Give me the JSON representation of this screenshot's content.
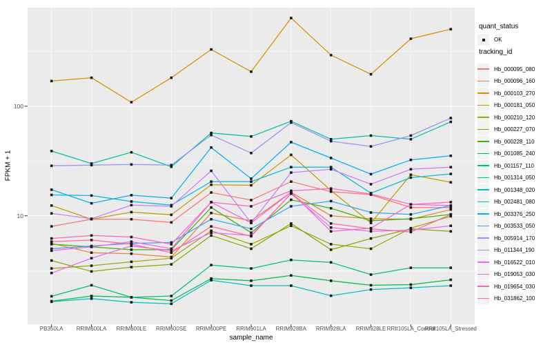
{
  "figure_type": "ggplot-line-chart",
  "colors": {
    "panel_background": "#EBEBEB",
    "gridline": "#FFFFFF",
    "tick_text": "#4D4D4D",
    "axis_text": "#000000",
    "point": "#1B1B1B",
    "legend_key_background": "#F2F2F2"
  },
  "y_axis": {
    "title": "FPKM + 1",
    "scale": "log10",
    "tick_labels": [
      "100",
      "10"
    ],
    "tick_values": [
      100,
      10
    ]
  },
  "x_axis": {
    "title": "sample_name"
  },
  "legend": {
    "quant_status": {
      "title": "quant_status",
      "items": [
        {
          "label": "OK",
          "symbol": "point"
        }
      ]
    },
    "tracking_id": {
      "title": "tracking_id"
    }
  },
  "chart_data": {
    "type": "line",
    "title": "",
    "xlabel": "sample_name",
    "ylabel": "FPKM + 1",
    "y_scale": "log10",
    "ylim": [
      1,
      800
    ],
    "grid": true,
    "legend_position": "right",
    "point_color": "#1B1B1B",
    "categories": [
      "PB350LA",
      "RRIM600LA",
      "RRIM600LE",
      "RRIM600SE",
      "RRIM600PE",
      "RRIM901LA",
      "RRIM928BA",
      "RRIM928LA",
      "RRIM928LE",
      "RRII105LA_Control",
      "RRII105LA_Stressed"
    ],
    "series": [
      {
        "name": "Hb_000095_080",
        "color": "#F8766D",
        "quant_status": "OK",
        "values": [
          8.0,
          9.3,
          9.3,
          8.7,
          16.3,
          13.9,
          20.5,
          16.6,
          15.6,
          11.9,
          11.9
        ]
      },
      {
        "name": "Hb_000096_160",
        "color": "#EA8331",
        "quant_status": "OK",
        "values": [
          5.6,
          4.6,
          4.5,
          4.2,
          10.6,
          9.0,
          16.4,
          10.0,
          9.4,
          9.3,
          11.4
        ]
      },
      {
        "name": "Hb_000103_270",
        "color": "#D89000",
        "quant_status": "OK",
        "values": [
          170,
          182,
          109,
          182,
          330,
          207,
          640,
          293,
          196,
          414,
          506
        ]
      },
      {
        "name": "Hb_000181_050",
        "color": "#C09B00",
        "quant_status": "OK",
        "values": [
          12.4,
          9.3,
          10.8,
          10.2,
          19.2,
          19.0,
          36.0,
          17.0,
          8.6,
          23.7,
          20.2
        ]
      },
      {
        "name": "Hb_000210_120",
        "color": "#A3A500",
        "quant_status": "OK",
        "values": [
          3.3,
          3.5,
          3.8,
          4.1,
          7.3,
          5.5,
          8.1,
          5.5,
          5.0,
          7.7,
          9.9
        ]
      },
      {
        "name": "Hb_000227_070",
        "color": "#7CAE00",
        "quant_status": "OK",
        "values": [
          3.9,
          3.1,
          3.4,
          3.6,
          6.6,
          5.0,
          8.5,
          4.9,
          6.2,
          7.6,
          7.2
        ]
      },
      {
        "name": "Hb_000228_110",
        "color": "#39B600",
        "quant_status": "OK",
        "values": [
          5.5,
          5.2,
          4.9,
          4.9,
          11.9,
          7.0,
          14.0,
          11.7,
          9.0,
          9.4,
          10.3
        ]
      },
      {
        "name": "Hb_001085_240",
        "color": "#00BB4E",
        "quant_status": "OK",
        "values": [
          1.66,
          1.85,
          1.8,
          1.68,
          2.67,
          2.55,
          2.85,
          2.55,
          2.32,
          2.35,
          2.6
        ]
      },
      {
        "name": "Hb_001157_110",
        "color": "#00BF7D",
        "quant_status": "OK",
        "values": [
          1.84,
          2.32,
          1.8,
          1.85,
          3.55,
          3.3,
          3.95,
          3.75,
          2.9,
          3.35,
          3.35
        ]
      },
      {
        "name": "Hb_001314_050",
        "color": "#00C1A3",
        "quant_status": "OK",
        "values": [
          39,
          30,
          38,
          28,
          57,
          53,
          73,
          50,
          54,
          50,
          72
        ]
      },
      {
        "name": "Hb_001348_020",
        "color": "#00BFC4",
        "quant_status": "OK",
        "values": [
          1.64,
          1.75,
          1.62,
          1.57,
          2.58,
          2.3,
          2.3,
          1.86,
          2.12,
          2.2,
          2.3
        ]
      },
      {
        "name": "Hb_002481_080",
        "color": "#00BAE0",
        "quant_status": "OK",
        "values": [
          15.5,
          15.3,
          13.5,
          12.5,
          20.5,
          20.5,
          27.8,
          27.8,
          16.1,
          22.3,
          24.1
        ]
      },
      {
        "name": "Hb_003376_250",
        "color": "#00B0F6",
        "quant_status": "OK",
        "values": [
          17.3,
          13.0,
          15.4,
          14.5,
          42.0,
          21.8,
          47.0,
          33.7,
          24.0,
          32.4,
          35.3
        ]
      },
      {
        "name": "Hb_003533_050",
        "color": "#35A2FF",
        "quant_status": "OK",
        "values": [
          5.0,
          5.3,
          5.6,
          5.7,
          9.3,
          7.6,
          12.2,
          13.6,
          10.7,
          10.3,
          12.4
        ]
      },
      {
        "name": "Hb_005914_170",
        "color": "#9590FF",
        "quant_status": "OK",
        "values": [
          28.6,
          29.0,
          29.4,
          29.0,
          54.6,
          37.4,
          71.0,
          48.0,
          43.0,
          54.0,
          78.0
        ]
      },
      {
        "name": "Hb_011344_190",
        "color": "#C77CFF",
        "quant_status": "OK",
        "values": [
          10.5,
          9.4,
          12.5,
          12.2,
          25.7,
          8.6,
          24.8,
          26.6,
          19.4,
          26.6,
          27.8
        ]
      },
      {
        "name": "Hb_016522_010",
        "color": "#E76BF3",
        "quant_status": "OK",
        "values": [
          3.0,
          4.1,
          5.3,
          4.8,
          7.0,
          6.6,
          15.9,
          7.8,
          7.2,
          7.4,
          8.1
        ]
      },
      {
        "name": "Hb_019053_030",
        "color": "#FA62DB",
        "quant_status": "OK",
        "values": [
          4.8,
          5.2,
          5.8,
          5.0,
          13.3,
          8.6,
          16.4,
          7.2,
          7.7,
          12.7,
          12.4
        ]
      },
      {
        "name": "Hb_019654_030",
        "color": "#FF62BC",
        "quant_status": "OK",
        "values": [
          6.2,
          6.6,
          6.4,
          5.5,
          13.3,
          12.2,
          16.9,
          17.7,
          15.8,
          12.7,
          13.3
        ]
      },
      {
        "name": "Hb_031862_100",
        "color": "#FF6A98",
        "quant_status": "OK",
        "values": [
          5.8,
          6.0,
          5.5,
          4.6,
          8.0,
          6.5,
          16.0,
          8.5,
          7.6,
          7.1,
          10.3
        ]
      }
    ]
  }
}
